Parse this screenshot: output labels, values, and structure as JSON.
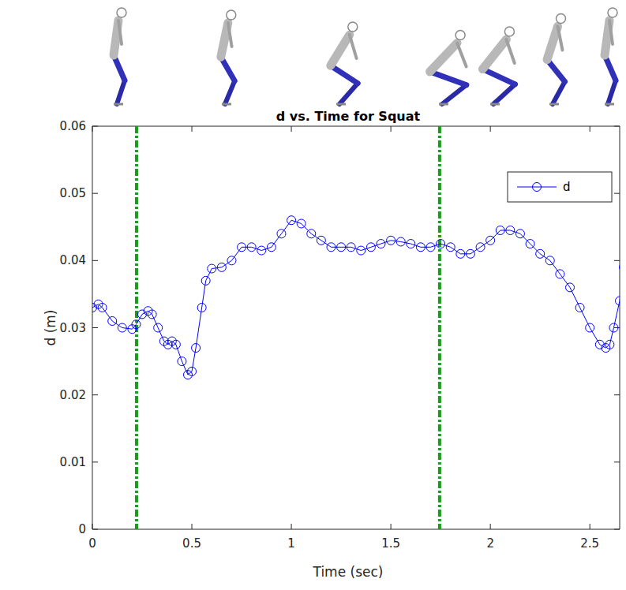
{
  "chart_data": {
    "type": "line",
    "title": "d vs. Time for Squat",
    "x_label": "Time (sec)",
    "y_label": "d (m)",
    "xlim": [
      0,
      2.65
    ],
    "ylim": [
      0,
      0.06
    ],
    "xticks": [
      0,
      0.5,
      1,
      1.5,
      2,
      2.5
    ],
    "yticks": [
      0,
      0.01,
      0.02,
      0.03,
      0.04,
      0.05,
      0.06
    ],
    "grid": false,
    "legend": "top-right",
    "vlines": [
      0.222,
      1.745
    ],
    "x": [
      0,
      0.03,
      0.05,
      0.1,
      0.15,
      0.2,
      0.22,
      0.25,
      0.28,
      0.3,
      0.33,
      0.36,
      0.38,
      0.4,
      0.42,
      0.45,
      0.48,
      0.5,
      0.52,
      0.55,
      0.57,
      0.6,
      0.65,
      0.7,
      0.75,
      0.8,
      0.85,
      0.9,
      0.95,
      1.0,
      1.05,
      1.1,
      1.15,
      1.2,
      1.25,
      1.3,
      1.35,
      1.4,
      1.45,
      1.5,
      1.55,
      1.6,
      1.65,
      1.7,
      1.75,
      1.8,
      1.85,
      1.9,
      1.95,
      2.0,
      2.05,
      2.1,
      2.15,
      2.2,
      2.25,
      2.3,
      2.35,
      2.4,
      2.45,
      2.5,
      2.55,
      2.58,
      2.6,
      2.62,
      2.65,
      2.67
    ],
    "series": [
      {
        "name": "d",
        "color": "#0000ff",
        "marker": "circle",
        "line_style": "solid",
        "values": [
          0.033,
          0.0335,
          0.033,
          0.031,
          0.03,
          0.0298,
          0.0305,
          0.032,
          0.0325,
          0.032,
          0.03,
          0.028,
          0.0275,
          0.028,
          0.0275,
          0.025,
          0.023,
          0.0235,
          0.027,
          0.033,
          0.037,
          0.0388,
          0.039,
          0.04,
          0.042,
          0.042,
          0.0415,
          0.042,
          0.044,
          0.046,
          0.0455,
          0.044,
          0.043,
          0.042,
          0.042,
          0.042,
          0.0415,
          0.042,
          0.0425,
          0.043,
          0.0428,
          0.0425,
          0.042,
          0.042,
          0.0425,
          0.042,
          0.041,
          0.041,
          0.042,
          0.043,
          0.0445,
          0.0445,
          0.044,
          0.0425,
          0.041,
          0.04,
          0.038,
          0.036,
          0.033,
          0.03,
          0.0275,
          0.027,
          0.0275,
          0.03,
          0.034,
          0.039
        ]
      }
    ]
  }
}
